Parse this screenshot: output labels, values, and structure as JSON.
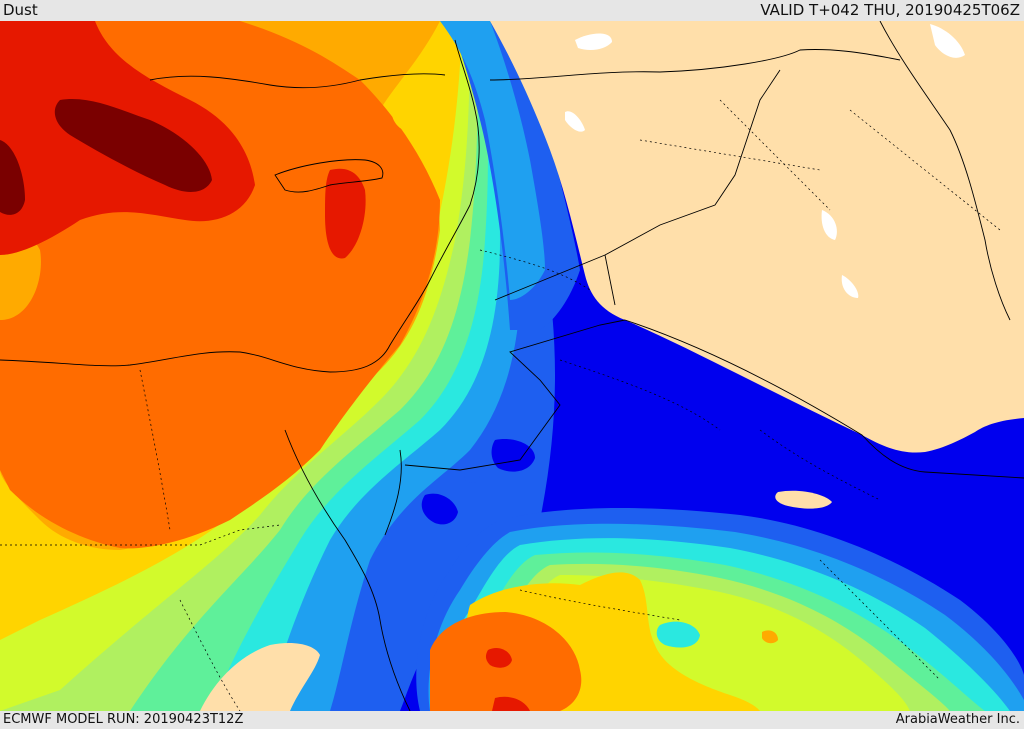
{
  "header": {
    "product": "Dust",
    "valid": "VALID T+042 THU, 20190425T06Z"
  },
  "footer": {
    "model_run": "ECMWF MODEL RUN: 20190423T12Z",
    "credit": "ArabiaWeather Inc."
  },
  "colors": {
    "land": "#ffdfaa",
    "water_body": "#ffffff",
    "scale": [
      "#0000ee",
      "#1e5ff0",
      "#1fa0f0",
      "#2ae8e0",
      "#5ff09a",
      "#b0f060",
      "#d2fa2c",
      "#ffd400",
      "#ffaa00",
      "#ff6c00",
      "#e61800",
      "#7a0000"
    ]
  },
  "field": {
    "type": "filled-contour",
    "levels_ordered_low_to_high": 12,
    "background_level_index": 0
  }
}
